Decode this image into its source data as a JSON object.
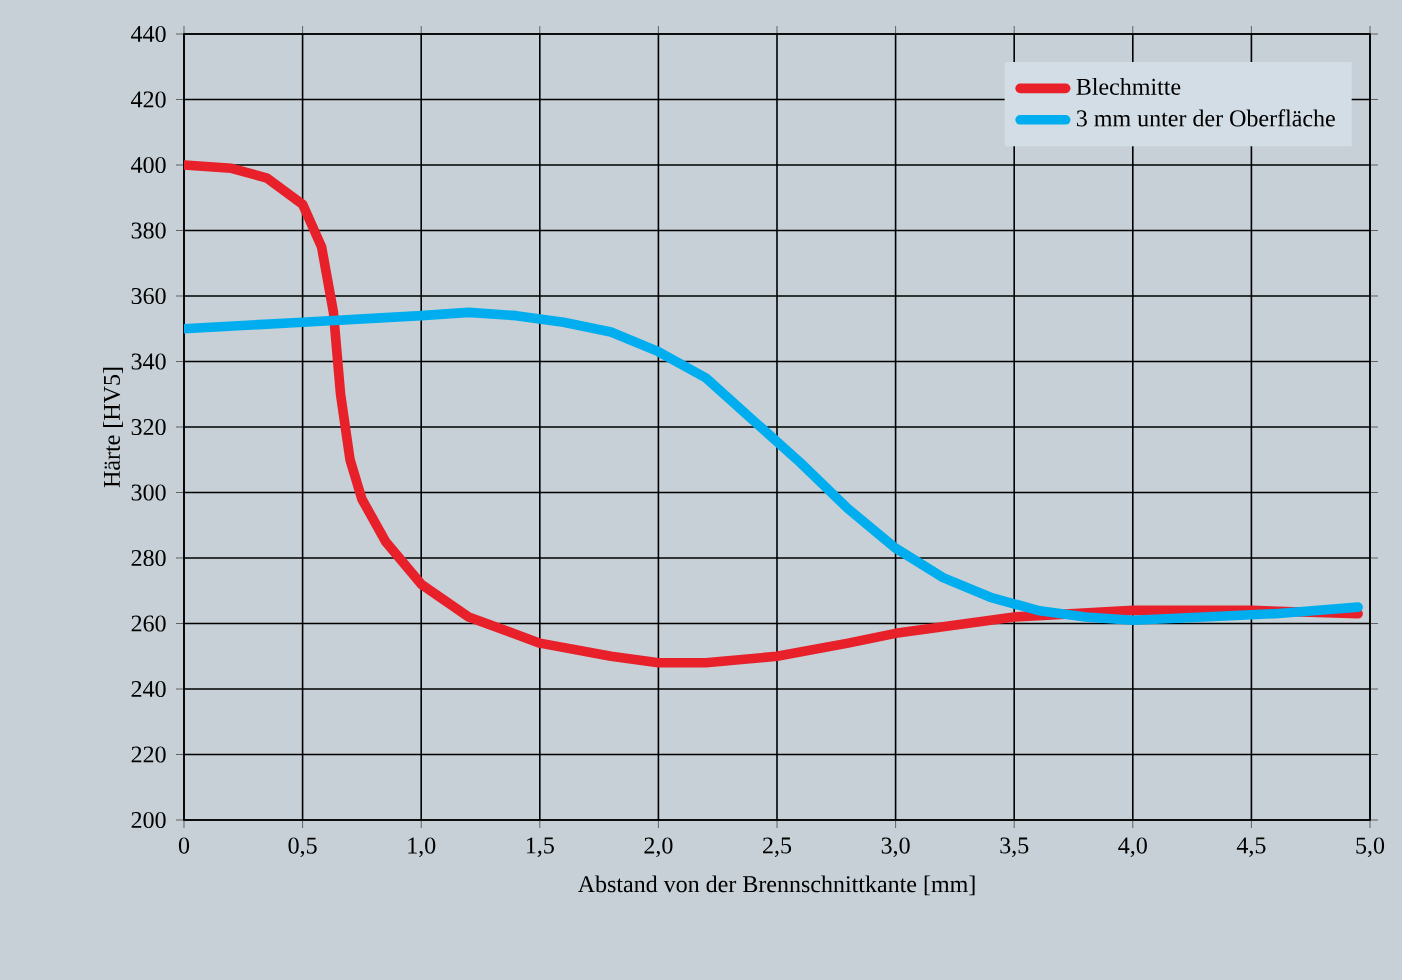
{
  "chart_data": {
    "type": "line",
    "xlabel": "Abstand von der Brennschnittkante [mm]",
    "ylabel": "Härte [HV5]",
    "xlim": [
      0,
      5
    ],
    "ylim": [
      200,
      440
    ],
    "xticks": [
      0,
      {
        "value": 0.5,
        "label": "0,5"
      },
      {
        "value": 1,
        "label": "1,0"
      },
      {
        "value": 1.5,
        "label": "1,5"
      },
      {
        "value": 2,
        "label": "2,0"
      },
      {
        "value": 2.5,
        "label": "2,5"
      },
      {
        "value": 3,
        "label": "3,0"
      },
      {
        "value": 3.5,
        "label": "3,5"
      },
      {
        "value": 4,
        "label": "4,0"
      },
      {
        "value": 4.5,
        "label": "4,5"
      },
      {
        "value": 5,
        "label": "5,0"
      }
    ],
    "yticks": [
      200,
      220,
      240,
      260,
      280,
      300,
      320,
      340,
      360,
      380,
      400,
      420,
      440
    ],
    "grid": true,
    "legend": "top right",
    "marker": "none",
    "line_style": "solid",
    "series": [
      {
        "name": "Blechmitte",
        "color": "#e8202a",
        "x": [
          0,
          0.2,
          0.35,
          0.5,
          0.58,
          0.63,
          0.66,
          0.7,
          0.75,
          0.85,
          1.0,
          1.2,
          1.5,
          1.8,
          2.0,
          2.2,
          2.5,
          2.8,
          3.0,
          3.5,
          4.0,
          4.5,
          4.95
        ],
        "values": [
          400,
          399,
          396,
          388,
          375,
          355,
          330,
          310,
          298,
          285,
          272,
          262,
          254,
          250,
          248,
          248,
          250,
          254,
          257,
          262,
          264,
          264,
          263
        ]
      },
      {
        "name": "3 mm unter der Oberfläche",
        "color": "#00aeef",
        "x": [
          0,
          0.5,
          1.0,
          1.2,
          1.4,
          1.6,
          1.8,
          2.0,
          2.2,
          2.4,
          2.6,
          2.8,
          3.0,
          3.2,
          3.4,
          3.6,
          3.8,
          4.0,
          4.3,
          4.6,
          4.95
        ],
        "values": [
          350,
          352,
          354,
          355,
          354,
          352,
          349,
          343,
          335,
          322,
          309,
          295,
          283,
          274,
          268,
          264,
          262,
          261,
          262,
          263,
          265
        ]
      }
    ]
  }
}
